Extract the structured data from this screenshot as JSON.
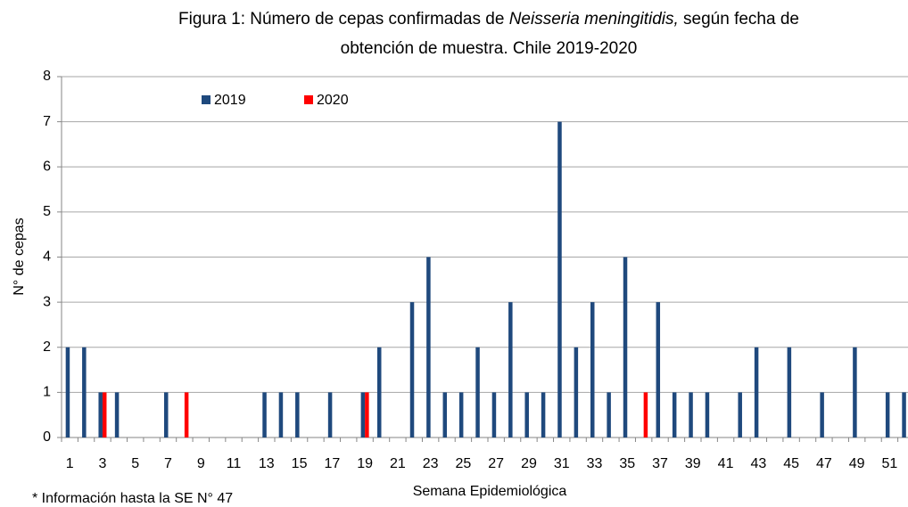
{
  "chart_data": {
    "type": "bar",
    "title": {
      "line1": [
        "Figura 1: Número de cepas confirmadas de ",
        "Neisseria meningitidis,",
        " según fecha de"
      ],
      "line2": "obtención de muestra. Chile 2019-2020"
    },
    "x_label": "Semana Epidemiológica",
    "y_label": "N° de cepas",
    "footnote": "* Información hasta la SE N° 47",
    "categories": [
      1,
      null,
      3,
      null,
      5,
      null,
      7,
      null,
      9,
      null,
      11,
      null,
      13,
      null,
      15,
      null,
      17,
      null,
      19,
      null,
      21,
      null,
      23,
      null,
      25,
      null,
      27,
      null,
      29,
      null,
      31,
      null,
      33,
      null,
      35,
      null,
      37,
      null,
      39,
      null,
      41,
      null,
      43,
      null,
      45,
      null,
      47,
      null,
      49,
      null,
      51,
      null
    ],
    "series": [
      {
        "name": "2019",
        "color": "#1f497d",
        "values": [
          2,
          2,
          1,
          1,
          0,
          0,
          1,
          0,
          0,
          0,
          0,
          0,
          1,
          1,
          1,
          0,
          1,
          0,
          1,
          2,
          0,
          3,
          4,
          1,
          1,
          2,
          1,
          3,
          1,
          1,
          7,
          2,
          3,
          1,
          4,
          0,
          3,
          1,
          1,
          1,
          0,
          1,
          2,
          0,
          2,
          0,
          1,
          0,
          2,
          0,
          1,
          1
        ]
      },
      {
        "name": "2020",
        "color": "#ff0000",
        "values": [
          0,
          0,
          1,
          0,
          0,
          0,
          0,
          1,
          0,
          0,
          0,
          0,
          0,
          0,
          0,
          0,
          0,
          0,
          1,
          0,
          0,
          0,
          0,
          0,
          0,
          0,
          0,
          0,
          0,
          0,
          0,
          0,
          0,
          0,
          0,
          1,
          0,
          0,
          0,
          0,
          0,
          0,
          0,
          0,
          0,
          0,
          0,
          0,
          0,
          0,
          0,
          0
        ]
      }
    ],
    "ylim": [
      0,
      8
    ],
    "yticks": [
      0,
      1,
      2,
      3,
      4,
      5,
      6,
      7,
      8
    ],
    "grid": true,
    "legend": "top-left"
  }
}
